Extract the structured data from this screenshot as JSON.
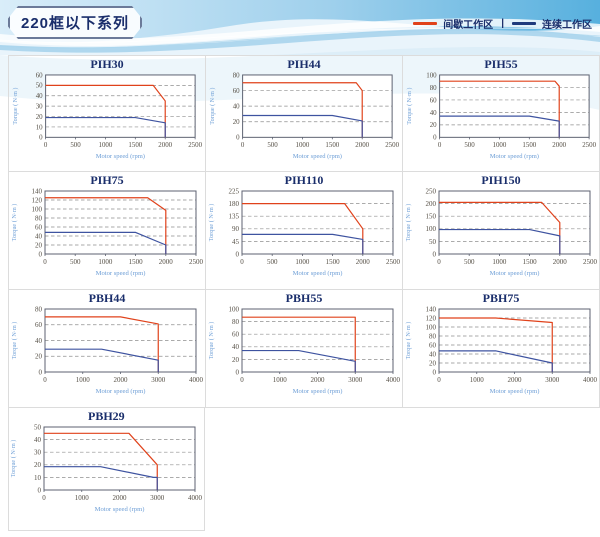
{
  "page": {
    "header_title": "220框以下系列",
    "legend": {
      "intermittent_label": "间歇工作区",
      "separator": "|",
      "continuous_label": "连续工作区",
      "intermittent_color": "#e0421b",
      "continuous_color": "#1e3a7c"
    }
  },
  "colors": {
    "red_line": "#e0421b",
    "blue_line": "#3e53a0",
    "grid": "#8f8f8f",
    "axis_box": "#5c6170",
    "tick_text": "#554f45",
    "axis_label": "#6d9ed6",
    "title_text": "#1a2e6b",
    "cell_border": "#dcdcdc"
  },
  "chart_data": [
    {
      "type": "line",
      "title": "PIH30",
      "xlabel": "Motor speed (rpm)",
      "ylabel": "Torque ( N·m )",
      "xlim": [
        0,
        2500
      ],
      "xstep": 500,
      "ylim": [
        0,
        60
      ],
      "ystep": 10,
      "grid": "dashed-horizontal",
      "series": [
        {
          "name": "间歇工作区",
          "color": "#e0421b",
          "points": [
            [
              0,
              50
            ],
            [
              1800,
              50
            ],
            [
              2000,
              35
            ],
            [
              2000,
              0
            ]
          ]
        },
        {
          "name": "连续工作区",
          "color": "#3e53a0",
          "points": [
            [
              0,
              19
            ],
            [
              1500,
              19
            ],
            [
              2000,
              14
            ],
            [
              2000,
              0
            ]
          ]
        }
      ]
    },
    {
      "type": "line",
      "title": "PIH44",
      "xlabel": "Motor speed (rpm)",
      "ylabel": "Torque ( N·m )",
      "xlim": [
        0,
        2500
      ],
      "xstep": 500,
      "ylim": [
        0,
        80
      ],
      "ystep": 20,
      "grid": "dashed-horizontal",
      "series": [
        {
          "name": "间歇工作区",
          "color": "#e0421b",
          "points": [
            [
              0,
              70
            ],
            [
              1900,
              70
            ],
            [
              2000,
              60
            ],
            [
              2000,
              0
            ]
          ]
        },
        {
          "name": "连续工作区",
          "color": "#3e53a0",
          "points": [
            [
              0,
              28
            ],
            [
              1500,
              28
            ],
            [
              2000,
              21
            ],
            [
              2000,
              0
            ]
          ]
        }
      ]
    },
    {
      "type": "line",
      "title": "PIH55",
      "xlabel": "Motor speed (rpm)",
      "ylabel": "Torque ( N·m )",
      "xlim": [
        0,
        2500
      ],
      "xstep": 500,
      "ylim": [
        0,
        100
      ],
      "ystep": 20,
      "grid": "dashed-horizontal",
      "series": [
        {
          "name": "间歇工作区",
          "color": "#e0421b",
          "points": [
            [
              0,
              90
            ],
            [
              1930,
              90
            ],
            [
              2000,
              82
            ],
            [
              2000,
              0
            ]
          ]
        },
        {
          "name": "连续工作区",
          "color": "#3e53a0",
          "points": [
            [
              0,
              34
            ],
            [
              1500,
              34
            ],
            [
              2000,
              26
            ],
            [
              2000,
              0
            ]
          ]
        }
      ]
    },
    {
      "type": "line",
      "title": "PIH75",
      "xlabel": "Motor speed (rpm)",
      "ylabel": "Torque ( N·m )",
      "xlim": [
        0,
        2500
      ],
      "xstep": 500,
      "ylim": [
        0,
        140
      ],
      "ystep": 20,
      "grid": "dashed-horizontal",
      "series": [
        {
          "name": "间歇工作区",
          "color": "#e0421b",
          "points": [
            [
              0,
              125
            ],
            [
              1700,
              125
            ],
            [
              2000,
              97
            ],
            [
              2000,
              0
            ]
          ]
        },
        {
          "name": "连续工作区",
          "color": "#3e53a0",
          "points": [
            [
              0,
              48
            ],
            [
              1500,
              48
            ],
            [
              2000,
              20
            ],
            [
              2000,
              0
            ]
          ]
        }
      ]
    },
    {
      "type": "line",
      "title": "PIH110",
      "xlabel": "Motor speed (rpm)",
      "ylabel": "Torque ( N·m )",
      "xlim": [
        0,
        2500
      ],
      "xstep": 500,
      "ylim": [
        0,
        225
      ],
      "ystep": 45,
      "grid": "dashed-horizontal",
      "series": [
        {
          "name": "间歇工作区",
          "color": "#e0421b",
          "points": [
            [
              0,
              180
            ],
            [
              1700,
              180
            ],
            [
              2000,
              90
            ],
            [
              2000,
              0
            ]
          ]
        },
        {
          "name": "连续工作区",
          "color": "#3e53a0",
          "points": [
            [
              0,
              70
            ],
            [
              1500,
              70
            ],
            [
              2000,
              52
            ],
            [
              2000,
              0
            ]
          ]
        }
      ]
    },
    {
      "type": "line",
      "title": "PIH150",
      "xlabel": "Motor speed (rpm)",
      "ylabel": "Torque ( N·m )",
      "xlim": [
        0,
        2500
      ],
      "xstep": 500,
      "ylim": [
        0,
        250
      ],
      "ystep": 50,
      "grid": "dashed-horizontal",
      "series": [
        {
          "name": "间歇工作区",
          "color": "#e0421b",
          "points": [
            [
              0,
              205
            ],
            [
              1700,
              205
            ],
            [
              2000,
              125
            ],
            [
              2000,
              0
            ]
          ]
        },
        {
          "name": "连续工作区",
          "color": "#3e53a0",
          "points": [
            [
              0,
              97
            ],
            [
              1500,
              97
            ],
            [
              2000,
              72
            ],
            [
              2000,
              0
            ]
          ]
        }
      ]
    },
    {
      "type": "line",
      "title": "PBH44",
      "xlabel": "Motor speed (rpm)",
      "ylabel": "Torque ( N·m )",
      "xlim": [
        0,
        4000
      ],
      "xstep": 1000,
      "ylim": [
        0,
        80
      ],
      "ystep": 20,
      "grid": "dashed-horizontal",
      "series": [
        {
          "name": "间歇工作区",
          "color": "#e0421b",
          "points": [
            [
              0,
              70
            ],
            [
              2000,
              70
            ],
            [
              3000,
              61
            ],
            [
              3000,
              0
            ]
          ]
        },
        {
          "name": "连续工作区",
          "color": "#3e53a0",
          "points": [
            [
              0,
              29
            ],
            [
              1500,
              29
            ],
            [
              3000,
              15
            ],
            [
              3000,
              0
            ]
          ]
        }
      ]
    },
    {
      "type": "line",
      "title": "PBH55",
      "xlabel": "Motor speed (rpm)",
      "ylabel": "Torque ( N·m )",
      "xlim": [
        0,
        4000
      ],
      "xstep": 1000,
      "ylim": [
        0,
        100
      ],
      "ystep": 20,
      "grid": "dashed-horizontal",
      "series": [
        {
          "name": "间歇工作区",
          "color": "#e0421b",
          "points": [
            [
              0,
              87
            ],
            [
              3000,
              87
            ],
            [
              3000,
              0
            ]
          ]
        },
        {
          "name": "连续工作区",
          "color": "#3e53a0",
          "points": [
            [
              0,
              34
            ],
            [
              1500,
              34
            ],
            [
              3000,
              17
            ],
            [
              3000,
              0
            ]
          ]
        }
      ]
    },
    {
      "type": "line",
      "title": "PBH75",
      "xlabel": "Motor speed (rpm)",
      "ylabel": "Torque ( N·m )",
      "xlim": [
        0,
        4000
      ],
      "xstep": 1000,
      "ylim": [
        0,
        140
      ],
      "ystep": 20,
      "grid": "dashed-horizontal",
      "series": [
        {
          "name": "间歇工作区",
          "color": "#e0421b",
          "points": [
            [
              0,
              120
            ],
            [
              1500,
              120
            ],
            [
              3000,
              110
            ],
            [
              3000,
              0
            ]
          ]
        },
        {
          "name": "连续工作区",
          "color": "#3e53a0",
          "points": [
            [
              0,
              47
            ],
            [
              1500,
              47
            ],
            [
              3000,
              20
            ],
            [
              3000,
              0
            ]
          ]
        }
      ]
    },
    {
      "type": "line",
      "title": "PBH29",
      "xlabel": "Motor speed (rpm)",
      "ylabel": "Torque ( N·m )",
      "xlim": [
        0,
        4000
      ],
      "xstep": 1000,
      "ylim": [
        0,
        50
      ],
      "ystep": 10,
      "grid": "dashed-horizontal",
      "series": [
        {
          "name": "间歇工作区",
          "color": "#e0421b",
          "points": [
            [
              0,
              45
            ],
            [
              2250,
              45
            ],
            [
              3000,
              20
            ],
            [
              3000,
              0
            ]
          ]
        },
        {
          "name": "连续工作区",
          "color": "#3e53a0",
          "points": [
            [
              0,
              18.5
            ],
            [
              1500,
              18.5
            ],
            [
              2900,
              10
            ],
            [
              3000,
              10
            ],
            [
              3000,
              0
            ]
          ]
        }
      ]
    }
  ]
}
